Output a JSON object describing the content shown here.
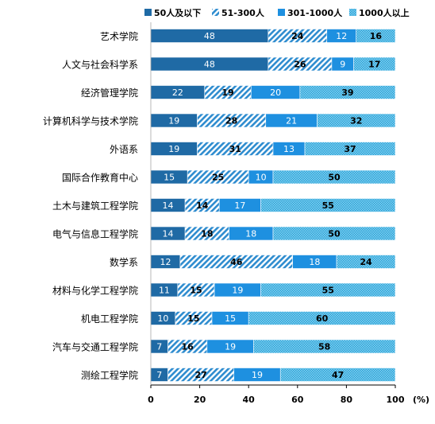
{
  "chart_data": {
    "type": "bar",
    "orientation": "horizontal",
    "stacked": true,
    "categories": [
      "艺术学院",
      "人文与社会科学系",
      "经济管理学院",
      "计算机科学与技术学院",
      "外语系",
      "国际合作教育中心",
      "土木与建筑工程学院",
      "电气与信息工程学院",
      "数学系",
      "材料与化学工程学院",
      "机电工程学院",
      "汽车与交通工程学院",
      "测绘工程学院"
    ],
    "series": [
      {
        "name": "50人及以下",
        "color": "#1f6aa5",
        "pattern": "solid",
        "label_color": "#ffffff",
        "values": [
          48,
          48,
          22,
          19,
          19,
          15,
          14,
          14,
          12,
          11,
          10,
          7,
          7
        ]
      },
      {
        "name": "51-300人",
        "color": "#2e8ccf",
        "pattern": "diagonal-stripes",
        "label_color": "#000000",
        "values": [
          24,
          26,
          19,
          28,
          31,
          25,
          14,
          18,
          46,
          15,
          15,
          16,
          27
        ]
      },
      {
        "name": "301-1000人",
        "color": "#1e90e0",
        "pattern": "solid",
        "label_color": "#ffffff",
        "values": [
          12,
          9,
          20,
          21,
          13,
          10,
          17,
          18,
          18,
          19,
          15,
          19,
          19
        ]
      },
      {
        "name": "1000人以上",
        "color": "#3fb3e0",
        "pattern": "dots",
        "label_color": "#000000",
        "values": [
          16,
          17,
          39,
          32,
          37,
          50,
          55,
          50,
          24,
          55,
          60,
          58,
          47
        ]
      }
    ],
    "xlim": [
      0,
      100
    ],
    "xticks": [
      "0",
      "20",
      "40",
      "60",
      "80",
      "100"
    ],
    "xunit": "(%)",
    "legend_position": "top-right",
    "grid": false
  }
}
